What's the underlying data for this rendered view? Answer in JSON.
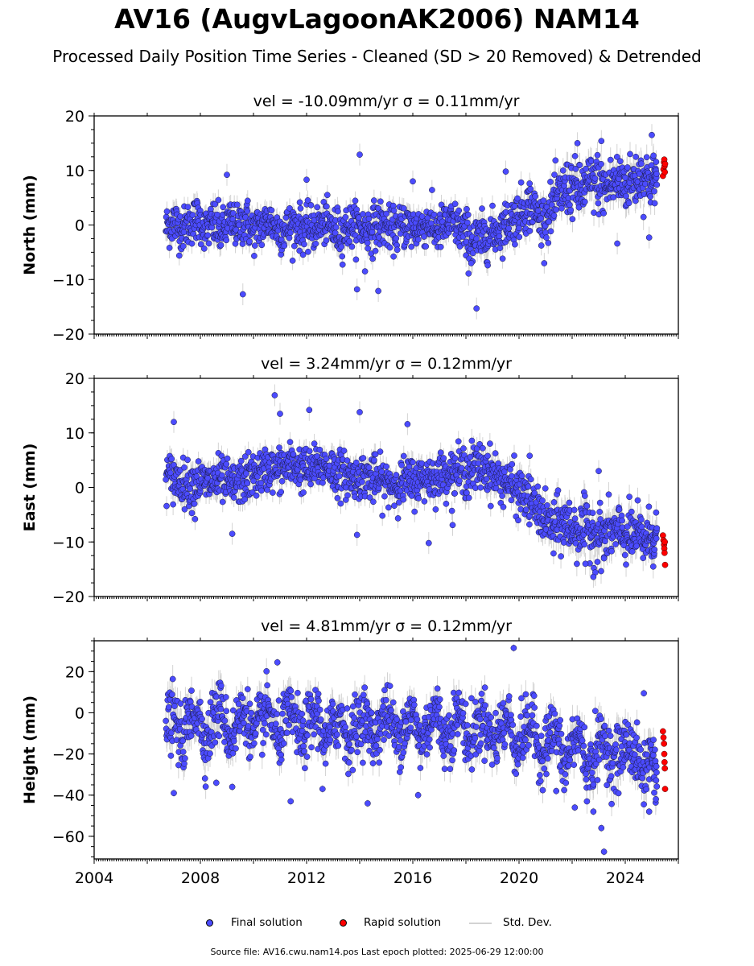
{
  "figure": {
    "title": "AV16 (AugvLagoonAK2006) NAM14",
    "subtitle": "Processed Daily Position Time Series - Cleaned (SD > 20 Removed) & Detrended",
    "footer": "Source file: AV16.cwu.nam14.pos  Last epoch plotted: 2025-06-29 12:00:00"
  },
  "legend": {
    "final": "Final solution",
    "rapid": "Rapid solution",
    "std": "Std. Dev."
  },
  "colors": {
    "final": "#4b4bff",
    "rapid": "#ff0000",
    "std": "#d3d3d3"
  },
  "chart_data": [
    {
      "type": "scatter",
      "title": "vel = -10.09mm/yr   σ = 0.11mm/yr",
      "ylabel": "North (mm)",
      "xlim": [
        2004.0,
        2026.0
      ],
      "ylim": [
        -20,
        20
      ],
      "yticks": [
        -20,
        -10,
        0,
        10,
        20
      ],
      "ytick_labels": [
        "−20",
        "−10",
        "0",
        "10",
        "20"
      ],
      "xticks": [
        2004,
        2008,
        2012,
        2016,
        2020,
        2024
      ],
      "xtick_labels": [],
      "series": [
        {
          "name": "Final solution",
          "x": [
            2006.7,
            2007.0,
            2007.3,
            2007.6,
            2007.9,
            2008.2,
            2008.5,
            2008.8,
            2009.1,
            2009.4,
            2009.7,
            2010.0,
            2010.3,
            2010.6,
            2010.9,
            2011.2,
            2011.5,
            2011.8,
            2012.1,
            2012.4,
            2012.7,
            2013.0,
            2013.3,
            2013.6,
            2013.9,
            2014.2,
            2014.5,
            2014.8,
            2015.1,
            2015.4,
            2015.7,
            2016.0,
            2016.3,
            2016.6,
            2016.9,
            2017.2,
            2017.5,
            2017.8,
            2018.1,
            2018.4,
            2018.7,
            2019.0,
            2019.3,
            2019.6,
            2019.9,
            2020.2,
            2020.5,
            2020.8,
            2021.1,
            2021.4,
            2021.7,
            2022.0,
            2022.3,
            2022.6,
            2022.9,
            2023.2,
            2023.5,
            2023.8,
            2024.1,
            2024.4,
            2024.7,
            2025.0,
            2025.2
          ],
          "y": [
            -0.5,
            0.8,
            -1.0,
            0.5,
            1.2,
            -0.8,
            0.3,
            -1.5,
            0.6,
            -0.4,
            1.0,
            -1.2,
            -0.2,
            0.9,
            -0.7,
            -1.1,
            0.2,
            -0.6,
            -1.0,
            -0.3,
            0.4,
            -0.8,
            -1.5,
            -0.2,
            0.1,
            -0.9,
            -0.4,
            0.3,
            -0.6,
            -1.0,
            0.2,
            -0.7,
            -0.3,
            0.4,
            -1.1,
            -0.2,
            0.6,
            -0.8,
            -2.5,
            -3.0,
            -2.2,
            -1.5,
            -0.8,
            0.5,
            1.5,
            3.0,
            3.5,
            1.0,
            1.8,
            4.5,
            6.5,
            7.0,
            6.0,
            7.5,
            8.0,
            6.5,
            7.8,
            8.2,
            7.5,
            8.5,
            9.0,
            8.0,
            8.8
          ],
          "sd": [
            1.8,
            2.0,
            1.7,
            1.9,
            1.8,
            1.7,
            2.0,
            1.9,
            1.8,
            1.7,
            2.0,
            1.8,
            1.9,
            1.7,
            1.8,
            2.0,
            1.7,
            1.9,
            1.8,
            1.8,
            1.7,
            2.0,
            1.9,
            1.8,
            1.7,
            1.8,
            2.0,
            1.9,
            1.7,
            1.8,
            1.9,
            2.0,
            1.7,
            1.8,
            1.9,
            1.8,
            1.7,
            2.0,
            2.2,
            2.1,
            2.0,
            1.9,
            1.8,
            1.9,
            2.0,
            2.1,
            1.9,
            1.8,
            2.0,
            2.2,
            2.3,
            2.4,
            2.2,
            2.3,
            2.5,
            2.2,
            2.3,
            2.4,
            2.2,
            2.3,
            2.4,
            2.2,
            2.1
          ],
          "outliers_x": [
            2009.0,
            2009.6,
            2012.0,
            2013.9,
            2014.0,
            2014.2,
            2014.7,
            2016.0,
            2018.2,
            2018.4,
            2019.5,
            2020.4,
            2022.2,
            2023.1,
            2023.7,
            2024.9,
            2025.0
          ],
          "outliers_y": [
            9.2,
            -12.7,
            8.3,
            -11.8,
            12.9,
            -8.5,
            -12.1,
            8.0,
            -7.0,
            -15.3,
            9.8,
            7.6,
            15.0,
            15.4,
            -3.4,
            -2.3,
            16.5
          ]
        },
        {
          "name": "Rapid solution",
          "x": [
            2025.42,
            2025.44,
            2025.46,
            2025.47,
            2025.48,
            2025.49,
            2025.5
          ],
          "y": [
            9.0,
            10.2,
            11.5,
            12.0,
            10.8,
            9.7,
            11.2
          ]
        }
      ]
    },
    {
      "type": "scatter",
      "title": "vel = 3.24mm/yr   σ = 0.12mm/yr",
      "ylabel": "East (mm)",
      "xlim": [
        2004.0,
        2026.0
      ],
      "ylim": [
        -20,
        20
      ],
      "yticks": [
        -20,
        -10,
        0,
        10,
        20
      ],
      "ytick_labels": [
        "−20",
        "−10",
        "0",
        "10",
        "20"
      ],
      "xticks": [
        2004,
        2008,
        2012,
        2016,
        2020,
        2024
      ],
      "xtick_labels": [],
      "series": [
        {
          "name": "Final solution",
          "x": [
            2006.7,
            2007.0,
            2007.3,
            2007.6,
            2007.9,
            2008.2,
            2008.5,
            2008.8,
            2009.1,
            2009.4,
            2009.7,
            2010.0,
            2010.3,
            2010.6,
            2010.9,
            2011.2,
            2011.5,
            2011.8,
            2012.1,
            2012.4,
            2012.7,
            2013.0,
            2013.3,
            2013.6,
            2013.9,
            2014.2,
            2014.5,
            2014.8,
            2015.1,
            2015.4,
            2015.7,
            2016.0,
            2016.3,
            2016.6,
            2016.9,
            2017.2,
            2017.5,
            2017.8,
            2018.1,
            2018.4,
            2018.7,
            2019.0,
            2019.3,
            2019.6,
            2019.9,
            2020.2,
            2020.5,
            2020.8,
            2021.1,
            2021.4,
            2021.7,
            2022.0,
            2022.3,
            2022.6,
            2022.9,
            2023.2,
            2023.5,
            2023.8,
            2024.1,
            2024.4,
            2024.7,
            2025.0,
            2025.2
          ],
          "y": [
            2.5,
            1.5,
            1.0,
            0.5,
            1.2,
            0.8,
            1.0,
            1.5,
            0.2,
            0.8,
            1.5,
            2.2,
            2.8,
            3.5,
            3.0,
            3.8,
            4.2,
            3.5,
            3.0,
            3.8,
            4.0,
            3.2,
            2.5,
            2.0,
            1.8,
            2.2,
            1.5,
            1.0,
            0.8,
            0.5,
            1.2,
            1.0,
            1.5,
            2.0,
            1.8,
            2.5,
            2.8,
            3.0,
            3.2,
            3.5,
            3.8,
            2.5,
            1.5,
            0.8,
            -0.5,
            -1.5,
            -3.0,
            -5.0,
            -6.5,
            -7.0,
            -6.5,
            -7.5,
            -8.0,
            -7.2,
            -8.5,
            -9.0,
            -8.2,
            -8.5,
            -9.0,
            -8.8,
            -9.5,
            -9.0,
            -9.5
          ],
          "sd": [
            1.8,
            2.0,
            1.7,
            1.9,
            1.8,
            1.7,
            2.0,
            1.9,
            1.8,
            1.7,
            2.0,
            1.8,
            1.9,
            1.7,
            1.8,
            2.0,
            1.7,
            1.9,
            1.8,
            1.8,
            1.7,
            2.0,
            1.9,
            1.8,
            1.7,
            1.8,
            2.0,
            1.9,
            1.7,
            1.8,
            1.9,
            2.0,
            1.7,
            1.8,
            1.9,
            1.8,
            1.7,
            2.0,
            2.2,
            2.1,
            2.0,
            1.9,
            1.8,
            1.9,
            2.0,
            2.1,
            1.9,
            1.8,
            2.0,
            2.2,
            2.3,
            2.4,
            2.2,
            2.3,
            2.5,
            2.2,
            2.3,
            2.4,
            2.2,
            2.3,
            2.4,
            2.2,
            2.1
          ],
          "outliers_x": [
            2007.0,
            2007.8,
            2009.2,
            2010.8,
            2011.0,
            2012.1,
            2013.9,
            2014.0,
            2015.8,
            2016.6,
            2017.5,
            2020.4,
            2021.3,
            2022.5,
            2022.8,
            2023.0,
            2023.2
          ],
          "outliers_y": [
            12.0,
            -5.8,
            -8.5,
            16.9,
            13.5,
            14.2,
            -8.7,
            13.8,
            11.6,
            -10.2,
            -6.9,
            5.8,
            -12.1,
            -14.0,
            -16.4,
            3.0,
            -13.0
          ]
        },
        {
          "name": "Rapid solution",
          "x": [
            2025.42,
            2025.44,
            2025.46,
            2025.47,
            2025.48,
            2025.49,
            2025.5
          ],
          "y": [
            -8.8,
            -9.7,
            -10.5,
            -11.2,
            -12.0,
            -10.0,
            -14.2
          ]
        }
      ]
    },
    {
      "type": "scatter",
      "title": "vel = 4.81mm/yr   σ = 0.12mm/yr",
      "ylabel": "Height (mm)",
      "xlim": [
        2004.0,
        2026.0
      ],
      "ylim": [
        -71,
        35
      ],
      "yticks": [
        -60,
        -40,
        -20,
        0,
        20
      ],
      "ytick_labels": [
        "−60",
        "−40",
        "−20",
        "0",
        "20"
      ],
      "xticks": [
        2004,
        2008,
        2012,
        2016,
        2020,
        2024
      ],
      "xtick_labels": [
        "2004",
        "2008",
        "2012",
        "2016",
        "2020",
        "2024"
      ],
      "series": [
        {
          "name": "Final solution",
          "x": [
            2006.7,
            2007.0,
            2007.3,
            2007.6,
            2007.9,
            2008.2,
            2008.5,
            2008.8,
            2009.1,
            2009.4,
            2009.7,
            2010.0,
            2010.3,
            2010.6,
            2010.9,
            2011.2,
            2011.5,
            2011.8,
            2012.1,
            2012.4,
            2012.7,
            2013.0,
            2013.3,
            2013.6,
            2013.9,
            2014.2,
            2014.5,
            2014.8,
            2015.1,
            2015.4,
            2015.7,
            2016.0,
            2016.3,
            2016.6,
            2016.9,
            2017.2,
            2017.5,
            2017.8,
            2018.1,
            2018.4,
            2018.7,
            2019.0,
            2019.3,
            2019.6,
            2019.9,
            2020.2,
            2020.5,
            2020.8,
            2021.1,
            2021.4,
            2021.7,
            2022.0,
            2022.3,
            2022.6,
            2022.9,
            2023.2,
            2023.5,
            2023.8,
            2024.1,
            2024.4,
            2024.7,
            2025.0,
            2025.2
          ],
          "y": [
            -5,
            -2,
            -15,
            -3,
            2,
            -16,
            -2,
            3,
            -14,
            -4,
            1,
            -13,
            -3,
            2,
            -15,
            -4,
            0,
            -14,
            -5,
            1,
            -16,
            -6,
            -1,
            -15,
            -5,
            0,
            -14,
            -4,
            1,
            -13,
            -6,
            0,
            -15,
            -5,
            2,
            -14,
            -6,
            1,
            -16,
            -7,
            -1,
            -15,
            -8,
            -2,
            -18,
            -10,
            -4,
            -22,
            -12,
            -8,
            -28,
            -15,
            -10,
            -30,
            -18,
            -12,
            -25,
            -20,
            -14,
            -22,
            -30,
            -18,
            -35
          ],
          "sd": [
            6,
            7,
            6,
            7,
            6,
            6,
            7,
            6,
            6,
            7,
            6,
            6,
            7,
            6,
            6,
            7,
            6,
            6,
            7,
            6,
            6,
            7,
            6,
            6,
            7,
            6,
            6,
            7,
            6,
            6,
            7,
            6,
            6,
            7,
            6,
            6,
            7,
            6,
            6,
            7,
            6,
            6,
            7,
            6,
            6,
            7,
            6,
            6,
            7,
            6,
            6,
            7,
            6,
            6,
            7,
            6,
            6,
            7,
            6,
            6,
            7,
            6,
            6
          ],
          "outliers_x": [
            2007.0,
            2008.6,
            2009.2,
            2010.9,
            2011.4,
            2012.6,
            2014.3,
            2016.2,
            2019.8,
            2021.4,
            2022.1,
            2022.8,
            2023.1,
            2023.2,
            2024.7,
            2024.9
          ],
          "outliers_y": [
            -39,
            -34,
            -36,
            24.5,
            -43,
            -37,
            -44,
            -40,
            31.5,
            -38,
            -46,
            -48,
            -56,
            -67.5,
            9.5,
            -48
          ]
        },
        {
          "name": "Rapid solution",
          "x": [
            2025.42,
            2025.44,
            2025.46,
            2025.47,
            2025.48,
            2025.49,
            2025.5
          ],
          "y": [
            -9,
            -12,
            -15,
            -20,
            -24,
            -27,
            -37
          ]
        }
      ]
    }
  ]
}
